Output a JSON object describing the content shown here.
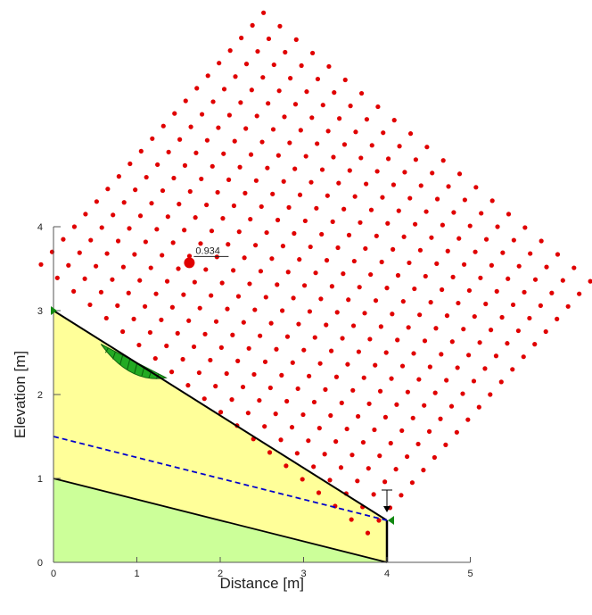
{
  "axes": {
    "x_title": "Distance [m]",
    "y_title": "Elevation [m]",
    "x_ticks": [
      "0",
      "1",
      "2",
      "3",
      "4",
      "5"
    ],
    "y_ticks": [
      "0",
      "1",
      "2",
      "3",
      "4"
    ]
  },
  "critical": {
    "label": "0.934",
    "center": [
      1.63,
      3.57
    ]
  },
  "geometry": {
    "ground_surface": [
      [
        0,
        3
      ],
      [
        4,
        0.5
      ]
    ],
    "bottom_layer_top": [
      [
        0,
        1
      ],
      [
        4,
        0
      ]
    ],
    "water_table": [
      [
        0,
        1.5
      ],
      [
        4,
        0.5
      ]
    ],
    "right_boundary": [
      [
        4,
        0
      ],
      [
        4,
        0.5
      ]
    ],
    "slip_surface_entry_exit": [
      [
        0.57,
        2.6
      ],
      [
        1.35,
        2.2
      ]
    ]
  },
  "colors": {
    "upper_soil": "#ffff99",
    "lower_soil": "#ccff99",
    "slip_mass": "#22aa22",
    "grid_centers": "#e00000",
    "water_table": "#0000cc"
  },
  "grid_centers": {
    "corners": {
      "left": [
        -0.15,
        3.55
      ],
      "top": [
        2.52,
        6.55
      ],
      "right": [
        6.43,
        3.35
      ],
      "bottom": [
        3.77,
        0.35
      ]
    },
    "rows": 21,
    "cols": 21
  }
}
